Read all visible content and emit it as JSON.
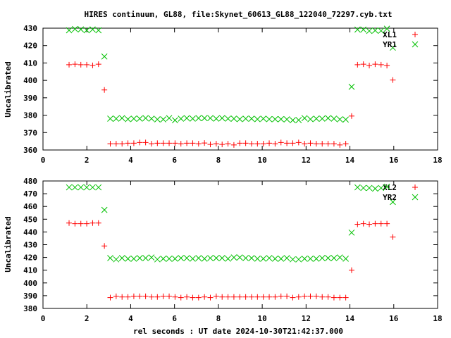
{
  "title": "HIRES continuum, GL88, file:Skynet_60613_GL88_122040_72297.cyb.txt",
  "colors": {
    "red": "#ff0000",
    "green": "#00c000",
    "axis": "#000000"
  },
  "chart_data": [
    {
      "type": "scatter",
      "ylabel": "Uncalibrated",
      "xlabel": "",
      "xlim": [
        0,
        18
      ],
      "ylim": [
        360,
        430
      ],
      "xticks": [
        0,
        2,
        4,
        6,
        8,
        10,
        12,
        14,
        16,
        18
      ],
      "yticks": [
        360,
        370,
        380,
        390,
        400,
        410,
        420,
        430
      ],
      "legend": "top-right",
      "x_start": 1.19,
      "x_step": 0.2685,
      "series": [
        {
          "name": "XL1",
          "marker": "plus",
          "color": "#ff0000",
          "values": [
            409,
            409.3,
            409,
            409,
            408.6,
            409.3,
            394.5,
            363.6,
            363.6,
            363.6,
            363.9,
            363.9,
            364.3,
            364.3,
            363.6,
            363.9,
            363.9,
            363.9,
            363.9,
            363.6,
            363.9,
            363.9,
            363.6,
            364.0,
            363.2,
            363.6,
            363.2,
            363.6,
            362.9,
            363.9,
            363.9,
            363.6,
            363.6,
            363.6,
            363.9,
            363.6,
            364.3,
            363.9,
            363.9,
            364.3,
            363.6,
            363.9,
            363.6,
            363.6,
            363.6,
            363.6,
            362.9,
            363.6,
            379.5,
            409,
            409.3,
            408.5,
            409.3,
            409,
            408.5,
            400.2
          ]
        },
        {
          "name": "YR1",
          "marker": "cross",
          "color": "#00c000",
          "values": [
            428.8,
            429.5,
            429.3,
            428.8,
            429.3,
            428.8,
            413.7,
            378.0,
            378.0,
            378.3,
            377.7,
            378.0,
            378.0,
            378.3,
            378.0,
            377.6,
            377.6,
            378.3,
            377.1,
            378.0,
            378.3,
            378.0,
            378.3,
            378.3,
            378.3,
            378.0,
            378.3,
            378.0,
            378.0,
            377.7,
            378.0,
            378.0,
            377.7,
            378.0,
            377.7,
            377.7,
            377.7,
            377.6,
            377.1,
            377.2,
            378.3,
            377.7,
            378.0,
            378.0,
            378.3,
            378.0,
            377.6,
            377.5,
            396.3,
            429.2,
            429.2,
            428.4,
            428.7,
            428.5,
            429.7,
            418.8
          ]
        }
      ]
    },
    {
      "type": "scatter",
      "ylabel": "Uncalibrated",
      "xlabel": "rel seconds : UT date 2024-10-30T21:42:37.000",
      "xlim": [
        0,
        18
      ],
      "ylim": [
        380,
        480
      ],
      "xticks": [
        0,
        2,
        4,
        6,
        8,
        10,
        12,
        14,
        16,
        18
      ],
      "yticks": [
        380,
        390,
        400,
        410,
        420,
        430,
        440,
        450,
        460,
        470,
        480
      ],
      "legend": "top-right",
      "x_start": 1.19,
      "x_step": 0.2685,
      "series": [
        {
          "name": "XL2",
          "marker": "plus",
          "color": "#ff0000",
          "values": [
            447,
            446.5,
            446.5,
            446.5,
            447,
            447,
            429,
            388.5,
            389.5,
            389,
            389,
            389.5,
            389.5,
            389.5,
            389,
            389,
            389.5,
            389.5,
            389,
            388.5,
            389,
            388.5,
            388.5,
            389,
            388.5,
            389.5,
            389,
            389,
            389,
            389,
            389,
            389,
            389,
            389,
            389,
            389,
            389.5,
            389.5,
            388.5,
            389,
            389.5,
            389.5,
            389.5,
            389,
            389,
            388.5,
            388.5,
            388.5,
            410,
            446,
            446.5,
            446,
            446.5,
            446.5,
            446.5,
            436
          ]
        },
        {
          "name": "YR2",
          "marker": "cross",
          "color": "#00c000",
          "values": [
            475,
            475,
            475,
            475,
            475,
            475,
            457.3,
            419.5,
            418.5,
            419.5,
            419,
            419,
            419.5,
            419.5,
            420,
            418.5,
            419,
            419,
            419,
            419.5,
            419.5,
            419,
            419.5,
            419,
            419.5,
            419.5,
            419.5,
            419,
            420,
            420,
            419.5,
            419.5,
            419,
            419,
            419.5,
            419,
            419,
            419.5,
            418.5,
            418.5,
            419,
            419,
            419,
            419.5,
            419.5,
            419.5,
            420,
            419,
            439.5,
            475,
            474.5,
            474.5,
            474,
            474.5,
            475.5,
            463.5
          ]
        }
      ]
    }
  ]
}
